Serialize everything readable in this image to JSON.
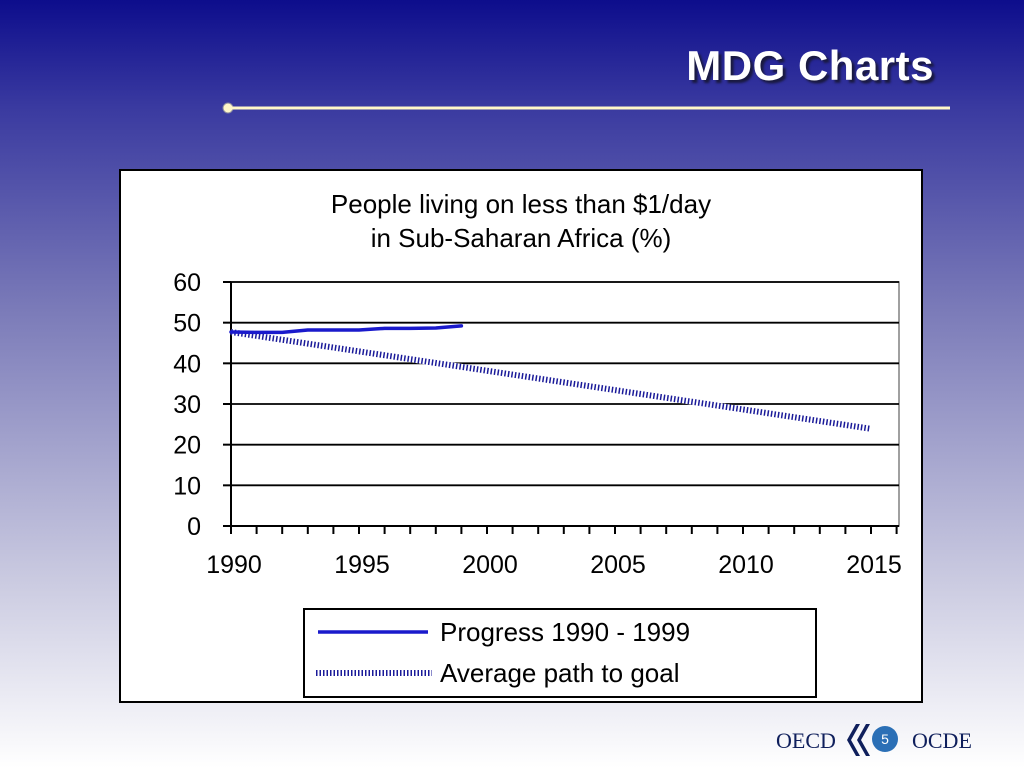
{
  "slide": {
    "title": "MDG Charts",
    "page_number": "5",
    "logo_left": "OECD",
    "logo_right": "OCDE"
  },
  "colors": {
    "progress_line": "#1a1acc",
    "goal_line": "#1a1a99",
    "title_text": "#ffffff",
    "accent_rule": "#fff7c8"
  },
  "chart_data": {
    "type": "line",
    "title_lines": [
      "People living on less than $1/day",
      "in Sub-Saharan Africa (%)"
    ],
    "xlim": [
      1990,
      2016
    ],
    "ylim": [
      0,
      60
    ],
    "x_ticks": [
      1990,
      1995,
      2000,
      2005,
      2010,
      2015
    ],
    "y_ticks": [
      0,
      10,
      20,
      30,
      40,
      50,
      60
    ],
    "grid": true,
    "legend_position": "bottom",
    "series": [
      {
        "name": "Progress 1990 - 1999",
        "style": "solid",
        "x": [
          1990,
          1991,
          1992,
          1993,
          1994,
          1995,
          1996,
          1997,
          1998,
          1999
        ],
        "y": [
          47.7,
          47.6,
          47.6,
          48.2,
          48.2,
          48.2,
          48.6,
          48.6,
          48.7,
          49.2
        ]
      },
      {
        "name": "Average path to goal",
        "style": "dotted",
        "x": [
          1990,
          2015
        ],
        "y": [
          47.7,
          23.9
        ]
      }
    ]
  }
}
